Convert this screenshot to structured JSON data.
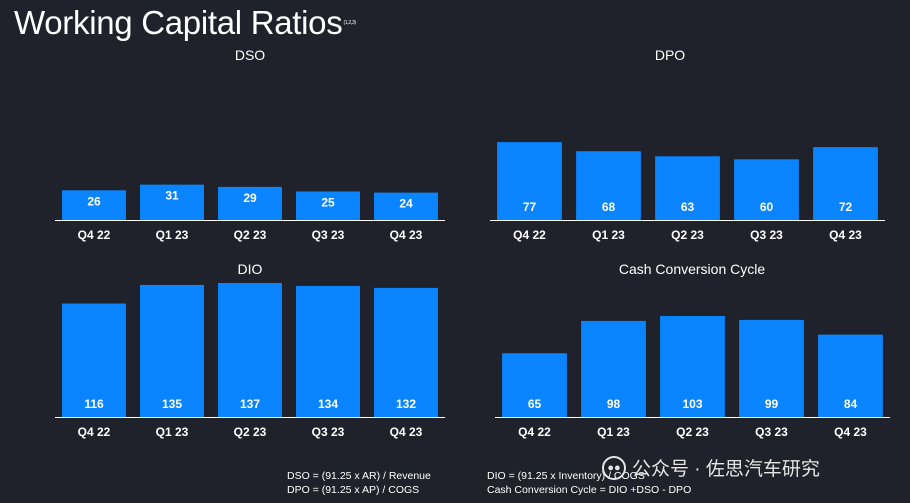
{
  "page": {
    "title": "Working Capital Ratios",
    "title_superscript": "(1,2,3)",
    "bar_color": "#0a84ff",
    "background_color": "#1f222b"
  },
  "chart_data": [
    {
      "type": "bar",
      "title": "DSO",
      "categories": [
        "Q4 22",
        "Q1 23",
        "Q2 23",
        "Q3 23",
        "Q4 23"
      ],
      "values": [
        26,
        31,
        29,
        25,
        24
      ],
      "ylim": [
        0,
        85
      ],
      "label_position": "inside-top"
    },
    {
      "type": "bar",
      "title": "DPO",
      "categories": [
        "Q4 22",
        "Q1 23",
        "Q2 23",
        "Q3 23",
        "Q4 23"
      ],
      "values": [
        77,
        68,
        63,
        60,
        72
      ],
      "ylim": [
        0,
        85
      ],
      "label_position": "inside-bottom"
    },
    {
      "type": "bar",
      "title": "DIO",
      "categories": [
        "Q4 22",
        "Q1 23",
        "Q2 23",
        "Q3 23",
        "Q4 23"
      ],
      "values": [
        116,
        135,
        137,
        134,
        132
      ],
      "ylim": [
        0,
        137
      ],
      "label_position": "inside-bottom"
    },
    {
      "type": "bar",
      "title": "Cash Conversion Cycle",
      "categories": [
        "Q4 22",
        "Q1 23",
        "Q2 23",
        "Q3 23",
        "Q4 23"
      ],
      "values": [
        65,
        98,
        103,
        99,
        84
      ],
      "ylim": [
        0,
        103
      ],
      "label_position": "inside-bottom"
    }
  ],
  "footnotes": {
    "dso_formula": "DSO = (91.25 x AR) / Revenue",
    "dpo_formula": "DPO = (91.25 x AP) / COGS",
    "dio_formula": "DIO = (91.25 x Inventory) / COGS",
    "ccc_formula": "Cash Conversion Cycle =  DIO +DSO - DPO"
  },
  "watermark": {
    "icon": "wechat-icon",
    "text": "公众号 · 佐思汽车研究"
  }
}
